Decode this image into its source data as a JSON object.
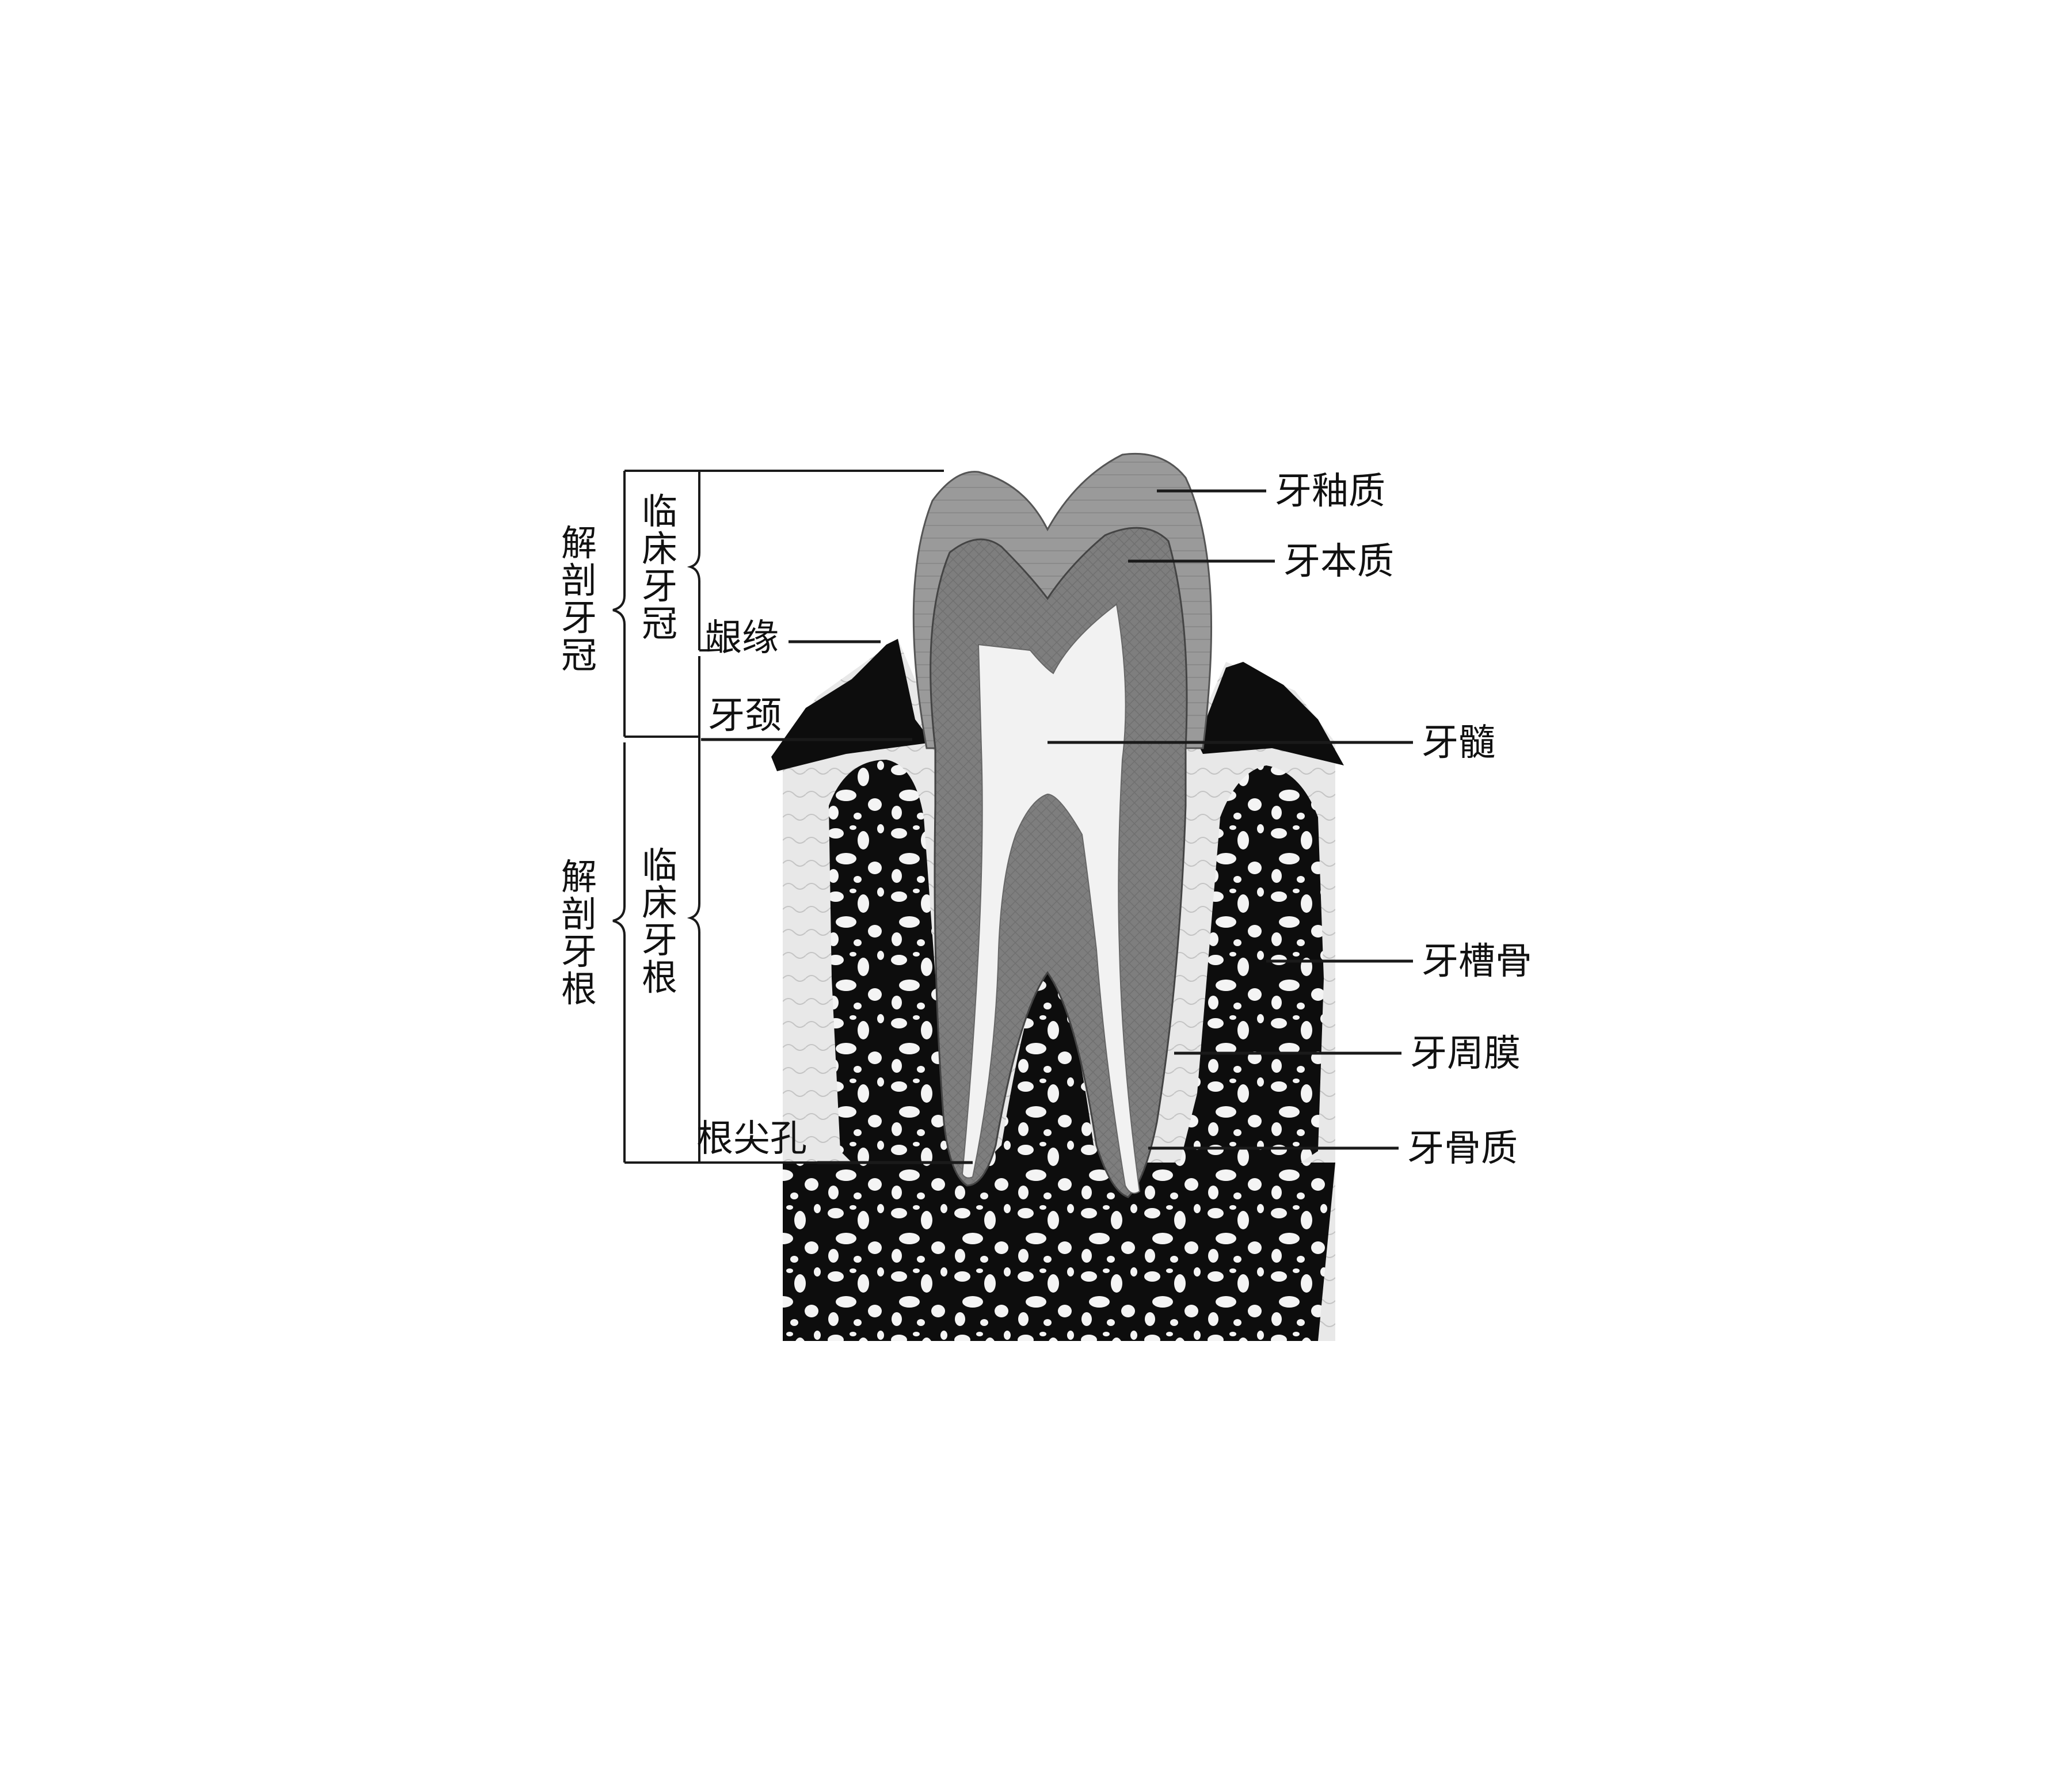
{
  "diagram": {
    "left_labels": {
      "anatomical_crown": [
        "解",
        "剖",
        "牙",
        "冠"
      ],
      "clinical_crown": [
        "临",
        "床",
        "牙",
        "冠"
      ],
      "anatomical_root": [
        "解",
        "剖",
        "牙",
        "根"
      ],
      "clinical_root": [
        "临",
        "床",
        "牙",
        "根"
      ]
    },
    "inner_labels": {
      "gingival_margin": "龈缘",
      "tooth_neck": "牙颈",
      "apical_foramen": "根尖孔"
    },
    "right_labels": {
      "enamel": "牙釉质",
      "dentin": "牙本质",
      "pulp": "牙髓",
      "alveolar_bone": "牙槽骨",
      "periodontal_ligament": "牙周膜",
      "cementum": "牙骨质"
    }
  }
}
